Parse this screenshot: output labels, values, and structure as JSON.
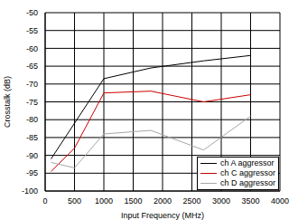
{
  "chart_data": {
    "type": "line",
    "x_label": "Input Frequency (MHz)",
    "y_label": "Crosstalk (dB)",
    "x": [
      100,
      500,
      1000,
      1800,
      2700,
      3500
    ],
    "series": [
      {
        "name": "ch A aggressor",
        "color": "#000000",
        "values": [
          -91,
          -81,
          -68.5,
          -65.5,
          -63.5,
          -62
        ]
      },
      {
        "name": "ch C aggressor",
        "color": "#cc0000",
        "values": [
          -94.5,
          -88,
          -72.5,
          -72,
          -75,
          -73
        ]
      },
      {
        "name": "ch D aggressor",
        "color": "#a6a6a6",
        "values": [
          -92,
          -93.5,
          -84,
          -83,
          -88.5,
          -79
        ]
      }
    ],
    "xlim": [
      0,
      4000
    ],
    "xticks": [
      0,
      500,
      1000,
      1500,
      2000,
      2500,
      3000,
      3500,
      4000
    ],
    "ylim": [
      -100,
      -50
    ],
    "yticks": [
      -100,
      -95,
      -90,
      -85,
      -80,
      -75,
      -70,
      -65,
      -60,
      -55,
      -50
    ],
    "grid": true,
    "legend": "lower right"
  }
}
